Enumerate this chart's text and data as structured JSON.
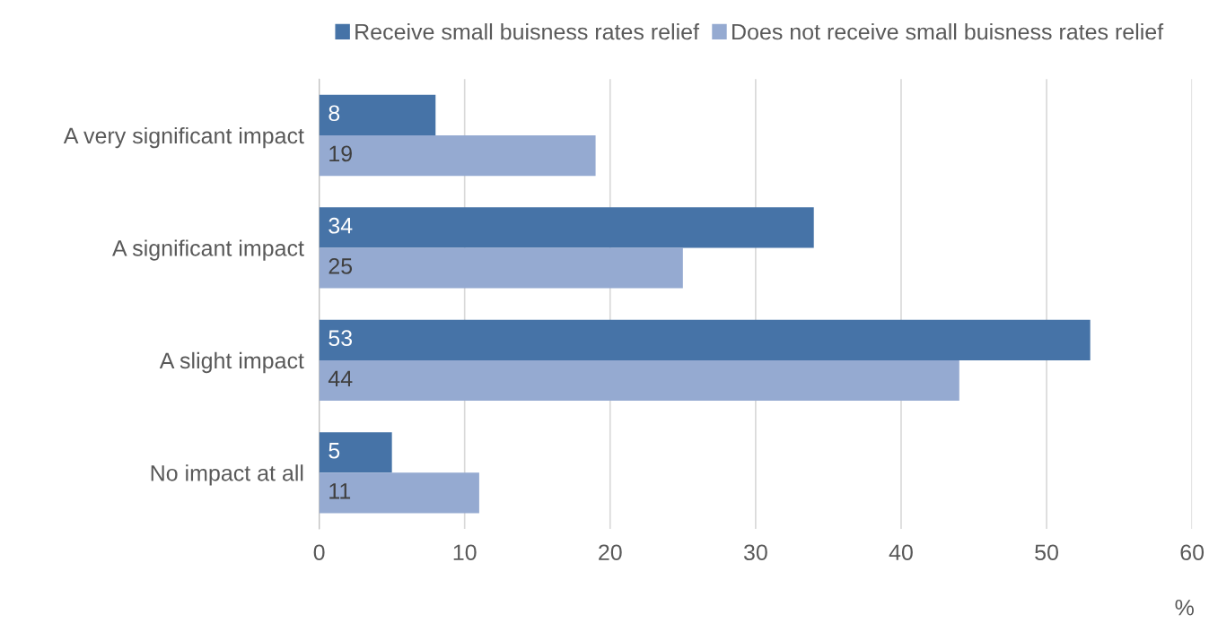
{
  "chart_data": {
    "type": "bar",
    "orientation": "horizontal",
    "xlabel": "%",
    "categories": [
      "A very significant impact",
      "A significant impact",
      "A slight impact",
      "No impact at all"
    ],
    "series": [
      {
        "name": "Receive small buisness rates relief",
        "color": "#4673a7",
        "values": [
          8,
          34,
          53,
          5
        ]
      },
      {
        "name": "Does not receive small buisness rates relief",
        "color": "#95aad1",
        "values": [
          19,
          25,
          44,
          11
        ]
      }
    ],
    "xlim": [
      0,
      60
    ],
    "xticks": [
      0,
      10,
      20,
      30,
      40,
      50,
      60
    ],
    "grid": "x",
    "legend": "top",
    "data_labels": true
  }
}
